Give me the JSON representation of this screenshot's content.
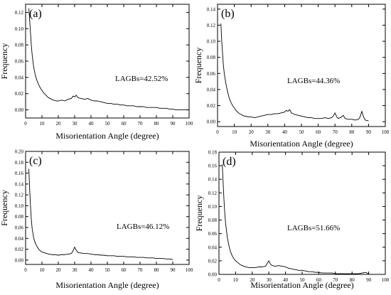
{
  "chart_data": [
    {
      "type": "line",
      "panel_label": "(a)",
      "annotation": "LAGBs=42.52%",
      "xlabel": "Misorientation Angle (degree)",
      "ylabel": "Frequency",
      "xlim": [
        0,
        100
      ],
      "ylim": [
        -0.01,
        0.13
      ],
      "xticks": [
        0,
        10,
        20,
        30,
        40,
        50,
        60,
        70,
        80,
        90,
        100
      ],
      "yticks": [
        0.0,
        0.02,
        0.04,
        0.06,
        0.08,
        0.1,
        0.12
      ],
      "tick_decimals": 2,
      "series": [
        {
          "x": [
            2,
            2.5,
            3,
            3.5,
            4,
            5,
            6,
            7,
            8,
            9,
            10,
            11,
            12,
            13,
            14,
            15,
            16,
            17,
            18,
            19,
            20,
            22,
            24,
            26,
            28,
            29,
            30,
            31,
            32,
            34,
            36,
            38,
            40,
            42,
            44,
            46,
            48,
            50,
            52,
            54,
            56,
            58,
            60,
            62,
            64,
            66,
            68,
            70,
            72,
            74,
            76,
            78,
            80,
            82,
            84,
            86,
            88,
            90,
            92,
            94,
            96,
            98,
            100
          ],
          "y": [
            0.125,
            0.11,
            0.095,
            0.08,
            0.068,
            0.052,
            0.042,
            0.036,
            0.031,
            0.027,
            0.024,
            0.021,
            0.019,
            0.017,
            0.015,
            0.014,
            0.013,
            0.012,
            0.0115,
            0.011,
            0.011,
            0.012,
            0.011,
            0.013,
            0.014,
            0.017,
            0.016,
            0.018,
            0.015,
            0.014,
            0.013,
            0.014,
            0.012,
            0.011,
            0.011,
            0.01,
            0.009,
            0.008,
            0.008,
            0.007,
            0.007,
            0.006,
            0.006,
            0.005,
            0.005,
            0.005,
            0.004,
            0.004,
            0.004,
            0.003,
            0.003,
            0.003,
            0.003,
            0.002,
            0.002,
            0.002,
            0.001,
            0.001,
            0.0,
            0.0,
            0.0,
            0.0,
            0.0
          ]
        }
      ]
    },
    {
      "type": "line",
      "panel_label": "(b)",
      "annotation": "LAGBs=44.36%",
      "xlabel": "Misorientation Angle (degree)",
      "ylabel": "Frequency",
      "xlim": [
        0,
        100
      ],
      "ylim": [
        -0.006,
        0.146
      ],
      "xticks": [
        0,
        10,
        20,
        30,
        40,
        50,
        60,
        70,
        80,
        90,
        100
      ],
      "yticks": [
        0.0,
        0.02,
        0.04,
        0.06,
        0.08,
        0.1,
        0.12,
        0.14
      ],
      "tick_decimals": 2,
      "series": [
        {
          "x": [
            2,
            2.5,
            3,
            3.5,
            4,
            5,
            6,
            7,
            8,
            9,
            10,
            11,
            12,
            13,
            14,
            15,
            16,
            17,
            18,
            20,
            22,
            24,
            26,
            28,
            30,
            32,
            34,
            36,
            38,
            40,
            41,
            42,
            43,
            44,
            46,
            48,
            50,
            52,
            54,
            56,
            58,
            60,
            62,
            64,
            66,
            68,
            69,
            70,
            71,
            72,
            74,
            75,
            76,
            78,
            80,
            82,
            84,
            85,
            86,
            87,
            88,
            90
          ],
          "y": [
            0.122,
            0.1,
            0.085,
            0.07,
            0.06,
            0.047,
            0.037,
            0.029,
            0.024,
            0.02,
            0.017,
            0.014,
            0.012,
            0.01,
            0.009,
            0.008,
            0.007,
            0.007,
            0.006,
            0.006,
            0.005,
            0.006,
            0.007,
            0.008,
            0.009,
            0.009,
            0.01,
            0.01,
            0.011,
            0.012,
            0.014,
            0.013,
            0.015,
            0.011,
            0.009,
            0.008,
            0.007,
            0.006,
            0.005,
            0.005,
            0.004,
            0.004,
            0.004,
            0.005,
            0.004,
            0.005,
            0.007,
            0.011,
            0.006,
            0.004,
            0.006,
            0.008,
            0.004,
            0.003,
            0.003,
            0.002,
            0.003,
            0.006,
            0.013,
            0.006,
            0.002,
            0.001
          ]
        }
      ]
    },
    {
      "type": "line",
      "panel_label": "(c)",
      "annotation": "LAGBs=46.12%",
      "xlabel": "Misorientation Angle (degree)",
      "ylabel": "Frequency",
      "xlim": [
        0,
        100
      ],
      "ylim": [
        -0.008,
        0.2
      ],
      "xticks": [
        0,
        10,
        20,
        30,
        40,
        50,
        60,
        70,
        80,
        90,
        100
      ],
      "yticks": [
        0.0,
        0.02,
        0.04,
        0.06,
        0.08,
        0.1,
        0.12,
        0.14,
        0.16,
        0.18,
        0.2
      ],
      "tick_decimals": 2,
      "series": [
        {
          "x": [
            2,
            2.5,
            3,
            3.5,
            4,
            5,
            6,
            7,
            8,
            9,
            10,
            11,
            12,
            13,
            14,
            15,
            16,
            18,
            20,
            22,
            24,
            26,
            28,
            29,
            30,
            31,
            32,
            34,
            36,
            38,
            40,
            42,
            44,
            46,
            48,
            50,
            52,
            54,
            56,
            58,
            60,
            62,
            64,
            66,
            68,
            70,
            72,
            74,
            76,
            78,
            80,
            82,
            84,
            86,
            88,
            90
          ],
          "y": [
            0.168,
            0.13,
            0.1,
            0.075,
            0.058,
            0.04,
            0.031,
            0.025,
            0.02,
            0.017,
            0.015,
            0.014,
            0.013,
            0.012,
            0.011,
            0.011,
            0.01,
            0.01,
            0.009,
            0.01,
            0.01,
            0.011,
            0.012,
            0.017,
            0.024,
            0.018,
            0.014,
            0.013,
            0.012,
            0.012,
            0.011,
            0.01,
            0.01,
            0.009,
            0.009,
            0.008,
            0.008,
            0.008,
            0.007,
            0.007,
            0.007,
            0.006,
            0.006,
            0.006,
            0.005,
            0.005,
            0.005,
            0.004,
            0.004,
            0.004,
            0.003,
            0.003,
            0.003,
            0.002,
            0.002,
            0.001
          ]
        }
      ]
    },
    {
      "type": "line",
      "panel_label": "(d)",
      "annotation": "LAGBs=51.66%",
      "xlabel": "Misorientation Angle (degree)",
      "ylabel": "Frequency",
      "xlim": [
        0,
        100
      ],
      "ylim": [
        0.0,
        0.18
      ],
      "xticks": [
        0,
        10,
        20,
        30,
        40,
        50,
        60,
        70,
        80,
        90,
        100
      ],
      "yticks": [
        0.0,
        0.02,
        0.04,
        0.06,
        0.08,
        0.1,
        0.12,
        0.14,
        0.16,
        0.18
      ],
      "tick_decimals": 2,
      "series": [
        {
          "x": [
            2,
            2.5,
            3,
            3.5,
            4,
            5,
            6,
            7,
            8,
            9,
            10,
            11,
            12,
            13,
            14,
            15,
            16,
            18,
            20,
            22,
            24,
            26,
            28,
            29,
            30,
            31,
            32,
            34,
            36,
            38,
            40,
            42,
            44,
            46,
            48,
            50,
            52,
            54,
            56,
            58,
            60,
            62,
            64,
            66,
            68,
            70,
            72,
            74,
            76,
            78,
            80,
            82,
            84,
            86,
            88,
            90
          ],
          "y": [
            0.162,
            0.135,
            0.11,
            0.09,
            0.075,
            0.055,
            0.042,
            0.033,
            0.027,
            0.023,
            0.02,
            0.018,
            0.016,
            0.014,
            0.013,
            0.012,
            0.011,
            0.01,
            0.01,
            0.01,
            0.011,
            0.011,
            0.012,
            0.016,
            0.02,
            0.015,
            0.013,
            0.012,
            0.013,
            0.012,
            0.011,
            0.009,
            0.008,
            0.007,
            0.006,
            0.006,
            0.005,
            0.004,
            0.004,
            0.003,
            0.003,
            0.002,
            0.002,
            0.002,
            0.002,
            0.001,
            0.001,
            0.001,
            0.001,
            0.001,
            0.001,
            0.001,
            0.001,
            0.002,
            0.003,
            0.001
          ]
        }
      ]
    }
  ]
}
